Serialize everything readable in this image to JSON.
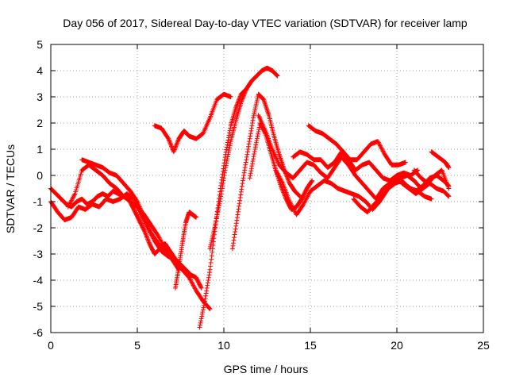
{
  "chart_data": {
    "type": "scatter",
    "title": "Day 056 of 2017, Sidereal Day-to-day VTEC variation (SDTVAR) for receiver lamp",
    "xlabel": "GPS time / hours",
    "ylabel": "SDTVAR / TECUs",
    "xlim": [
      0,
      25
    ],
    "ylim": [
      -6,
      5
    ],
    "xticks": [
      "0",
      "5",
      "10",
      "15",
      "20",
      "25"
    ],
    "yticks": [
      "-6",
      "-5",
      "-4",
      "-3",
      "-2",
      "-1",
      "0",
      "1",
      "2",
      "3",
      "4",
      "5"
    ],
    "grid": true,
    "marker": "plus",
    "color": "#ff0000",
    "series": [
      {
        "x": [
          0.0,
          0.3,
          0.6,
          0.9,
          1.2,
          1.5,
          1.8,
          2.1,
          2.4,
          2.7,
          3.0,
          3.3,
          3.6,
          3.9,
          4.2,
          4.5,
          4.8,
          5.1,
          5.4,
          5.7,
          6.0,
          6.3,
          6.6,
          6.9,
          7.2,
          7.5,
          7.8,
          8.1,
          8.4,
          8.7
        ],
        "y": [
          -0.5,
          -0.7,
          -0.9,
          -1.1,
          -1.2,
          -1.0,
          -0.9,
          -1.1,
          -1.0,
          -0.8,
          -0.7,
          -0.8,
          -0.6,
          -0.7,
          -0.8,
          -0.9,
          -1.3,
          -1.7,
          -2.1,
          -2.6,
          -3.0,
          -2.8,
          -2.6,
          -2.9,
          -3.2,
          -3.4,
          -3.6,
          -3.8,
          -3.9,
          -4.3
        ]
      },
      {
        "x": [
          0.0,
          0.4,
          0.8,
          1.2,
          1.6,
          2.0,
          2.4,
          2.8,
          3.2,
          3.6,
          4.0,
          4.4,
          4.8,
          5.2,
          5.6,
          6.0,
          6.4,
          6.8,
          7.2,
          7.6,
          8.0,
          8.4,
          8.8,
          9.2
        ],
        "y": [
          -1.0,
          -1.4,
          -1.7,
          -1.6,
          -1.2,
          -1.3,
          -1.1,
          -1.2,
          -0.9,
          -1.0,
          -0.9,
          -0.7,
          -0.9,
          -1.5,
          -2.0,
          -2.5,
          -2.9,
          -3.1,
          -3.2,
          -3.6,
          -3.9,
          -4.4,
          -4.8,
          -5.1
        ]
      },
      {
        "x": [
          1.0,
          1.4,
          1.8,
          2.2,
          2.6,
          3.0,
          3.4,
          3.8,
          4.2,
          4.6,
          5.0,
          5.4,
          5.8,
          6.2,
          6.6,
          7.0,
          7.4
        ],
        "y": [
          -1.2,
          -0.7,
          0.2,
          0.4,
          0.2,
          0.0,
          -0.3,
          -0.5,
          -0.8,
          -1.0,
          -1.2,
          -1.5,
          -1.9,
          -2.3,
          -2.8,
          -3.2,
          -3.6
        ]
      },
      {
        "x": [
          1.8,
          2.2,
          2.6,
          3.0,
          3.4,
          3.8,
          4.2,
          4.6,
          5.0,
          5.4,
          5.8,
          6.2,
          6.6,
          7.0
        ],
        "y": [
          0.6,
          0.5,
          0.4,
          0.3,
          0.1,
          0.0,
          -0.3,
          -0.6,
          -1.0,
          -1.6,
          -2.2,
          -2.6,
          -2.9,
          -3.1
        ]
      },
      {
        "x": [
          7.2,
          7.4,
          7.6,
          7.8,
          8.0,
          8.2,
          8.4
        ],
        "y": [
          -4.3,
          -3.5,
          -2.6,
          -1.8,
          -1.4,
          -1.5,
          -1.6
        ]
      },
      {
        "x": [
          6.0,
          6.4,
          6.8,
          7.1,
          7.4,
          7.7,
          8.0,
          8.4,
          8.8,
          9.2,
          9.6,
          10.0,
          10.4
        ],
        "y": [
          1.9,
          1.8,
          1.4,
          0.9,
          1.4,
          1.7,
          1.5,
          1.4,
          1.6,
          2.2,
          2.9,
          3.1,
          3.0
        ]
      },
      {
        "x": [
          8.6,
          8.9,
          9.2,
          9.5,
          9.8,
          10.1,
          10.4,
          10.7,
          11.0,
          11.3
        ],
        "y": [
          -5.8,
          -4.8,
          -3.6,
          -2.0,
          -0.5,
          0.8,
          1.9,
          2.6,
          3.1,
          3.3
        ]
      },
      {
        "x": [
          9.2,
          9.5,
          9.8,
          10.1,
          10.4,
          10.7,
          11.0,
          11.3,
          11.6,
          11.9,
          12.2,
          12.5,
          12.8,
          13.1
        ],
        "y": [
          -2.8,
          -1.9,
          -0.9,
          0.3,
          1.3,
          2.1,
          2.8,
          3.3,
          3.6,
          3.8,
          4.0,
          4.1,
          4.0,
          3.8
        ]
      },
      {
        "x": [
          10.5,
          10.8,
          11.1,
          11.4,
          11.7,
          12.0,
          12.3,
          12.6,
          12.9,
          13.2,
          13.5,
          13.8,
          14.1,
          14.4
        ],
        "y": [
          -2.8,
          -1.5,
          -0.2,
          1.0,
          2.2,
          3.1,
          2.9,
          2.3,
          1.5,
          0.8,
          0.2,
          -0.3,
          -0.6,
          -0.8
        ]
      },
      {
        "x": [
          11.5,
          11.8,
          12.1,
          12.4,
          12.7,
          13.0,
          13.3,
          13.6,
          13.9,
          14.2,
          14.5,
          14.8,
          15.1
        ],
        "y": [
          -0.1,
          1.0,
          2.0,
          1.6,
          0.9,
          0.2,
          -0.4,
          -0.9,
          -1.3,
          -1.2,
          -0.9,
          -0.5,
          -0.2
        ]
      },
      {
        "x": [
          12.0,
          12.4,
          12.8,
          13.2,
          13.6,
          14.0,
          14.4,
          14.8,
          15.2,
          15.6,
          16.0,
          16.4,
          16.8,
          17.2,
          17.6,
          18.0,
          18.4,
          18.8,
          19.2,
          19.6,
          20.0,
          20.4,
          20.8,
          21.2,
          21.6,
          22.0
        ],
        "y": [
          2.3,
          1.7,
          1.0,
          0.4,
          0.1,
          -0.1,
          0.2,
          0.5,
          0.4,
          0.1,
          -0.1,
          0.3,
          0.7,
          0.4,
          0.0,
          -0.3,
          -0.6,
          -0.9,
          -0.5,
          -0.3,
          -0.2,
          -0.3,
          -0.5,
          -0.6,
          -0.8,
          -0.9
        ]
      },
      {
        "x": [
          13.0,
          13.4,
          13.8,
          14.2,
          14.6,
          15.0,
          15.4,
          15.8,
          16.2,
          16.6,
          17.0,
          17.4,
          17.8,
          18.2,
          18.6,
          19.0,
          19.4,
          19.8,
          20.2,
          20.6,
          21.0,
          21.4
        ],
        "y": [
          0.2,
          -0.3,
          -1.0,
          -1.5,
          -1.1,
          -0.6,
          -0.4,
          -0.2,
          -0.3,
          -0.5,
          -0.6,
          -0.7,
          -0.8,
          -1.0,
          -1.3,
          -1.0,
          -0.6,
          -0.2,
          -0.1,
          0.0,
          -0.2,
          -0.5
        ]
      },
      {
        "x": [
          14.0,
          14.4,
          14.8,
          15.2,
          15.6,
          16.0,
          16.4,
          16.8,
          17.2,
          17.6,
          18.0,
          18.4,
          18.8,
          19.2,
          19.6,
          20.0,
          20.4,
          20.8,
          21.2
        ],
        "y": [
          0.7,
          0.9,
          0.8,
          0.6,
          0.6,
          0.3,
          0.5,
          0.9,
          0.6,
          0.2,
          0.4,
          0.5,
          0.2,
          -0.1,
          -0.2,
          0.0,
          0.1,
          0.0,
          0.2
        ]
      },
      {
        "x": [
          14.9,
          15.3,
          15.7,
          16.1,
          16.5,
          16.9,
          17.3,
          17.7,
          18.1,
          18.5,
          18.9,
          19.3,
          19.7,
          20.1,
          20.5
        ],
        "y": [
          1.9,
          1.7,
          1.6,
          1.4,
          1.2,
          0.9,
          0.6,
          0.6,
          0.9,
          1.2,
          1.3,
          0.8,
          0.4,
          0.4,
          0.5
        ]
      },
      {
        "x": [
          17.5,
          17.9,
          18.3,
          18.7,
          19.1,
          19.5,
          19.9,
          20.3,
          20.7,
          21.1,
          21.5,
          21.9,
          22.3,
          22.7,
          23.0
        ],
        "y": [
          -0.9,
          -1.2,
          -1.4,
          -1.1,
          -0.8,
          -0.5,
          -0.3,
          -0.2,
          -0.5,
          -0.6,
          -0.4,
          -0.1,
          0.0,
          -0.2,
          -0.4
        ]
      },
      {
        "x": [
          20.3,
          20.7,
          21.1,
          21.5,
          21.9,
          22.3,
          22.7,
          23.0
        ],
        "y": [
          -0.3,
          -0.5,
          -0.7,
          -0.5,
          -0.3,
          -0.5,
          -0.6,
          -0.8
        ]
      },
      {
        "x": [
          21.0,
          21.4,
          21.8,
          22.2,
          22.6,
          23.0
        ],
        "y": [
          0.2,
          -0.1,
          -0.3,
          0.0,
          0.2,
          -0.5
        ]
      },
      {
        "x": [
          22.0,
          22.4,
          22.8,
          23.0
        ],
        "y": [
          0.9,
          0.7,
          0.5,
          0.3
        ]
      }
    ]
  }
}
